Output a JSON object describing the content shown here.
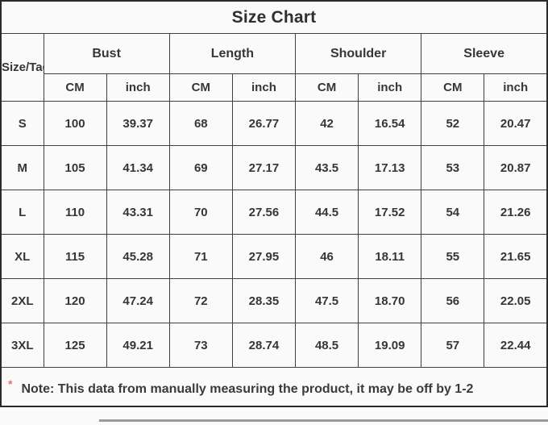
{
  "title": "Size Chart",
  "chart_data": {
    "type": "table",
    "title": "Size Chart",
    "corner_header": "Size/Tag",
    "column_groups": [
      "Bust",
      "Length",
      "Shoulder",
      "Sleeve"
    ],
    "unit_row": [
      "CM",
      "inch",
      "CM",
      "inch",
      "CM",
      "inch",
      "CM",
      "inch"
    ],
    "rows": [
      [
        "S",
        "100",
        "39.37",
        "68",
        "26.77",
        "42",
        "16.54",
        "52",
        "20.47"
      ],
      [
        "M",
        "105",
        "41.34",
        "69",
        "27.17",
        "43.5",
        "17.13",
        "53",
        "20.87"
      ],
      [
        "L",
        "110",
        "43.31",
        "70",
        "27.56",
        "44.5",
        "17.52",
        "54",
        "21.26"
      ],
      [
        "XL",
        "115",
        "45.28",
        "71",
        "27.95",
        "46",
        "18.11",
        "55",
        "21.65"
      ],
      [
        "2XL",
        "120",
        "47.24",
        "72",
        "28.35",
        "47.5",
        "18.70",
        "56",
        "22.05"
      ],
      [
        "3XL",
        "125",
        "49.21",
        "73",
        "28.74",
        "48.5",
        "19.09",
        "57",
        "22.44"
      ]
    ]
  },
  "note": {
    "marker": "*",
    "text": "Note: This data from manually measuring the product, it may be off by 1-2"
  },
  "colors": {
    "background": "#fbfafa",
    "inner_border": "#3f3f3f",
    "outer_border": "#2b2b2b",
    "text": "#363636",
    "note_marker": "#e2726e"
  }
}
